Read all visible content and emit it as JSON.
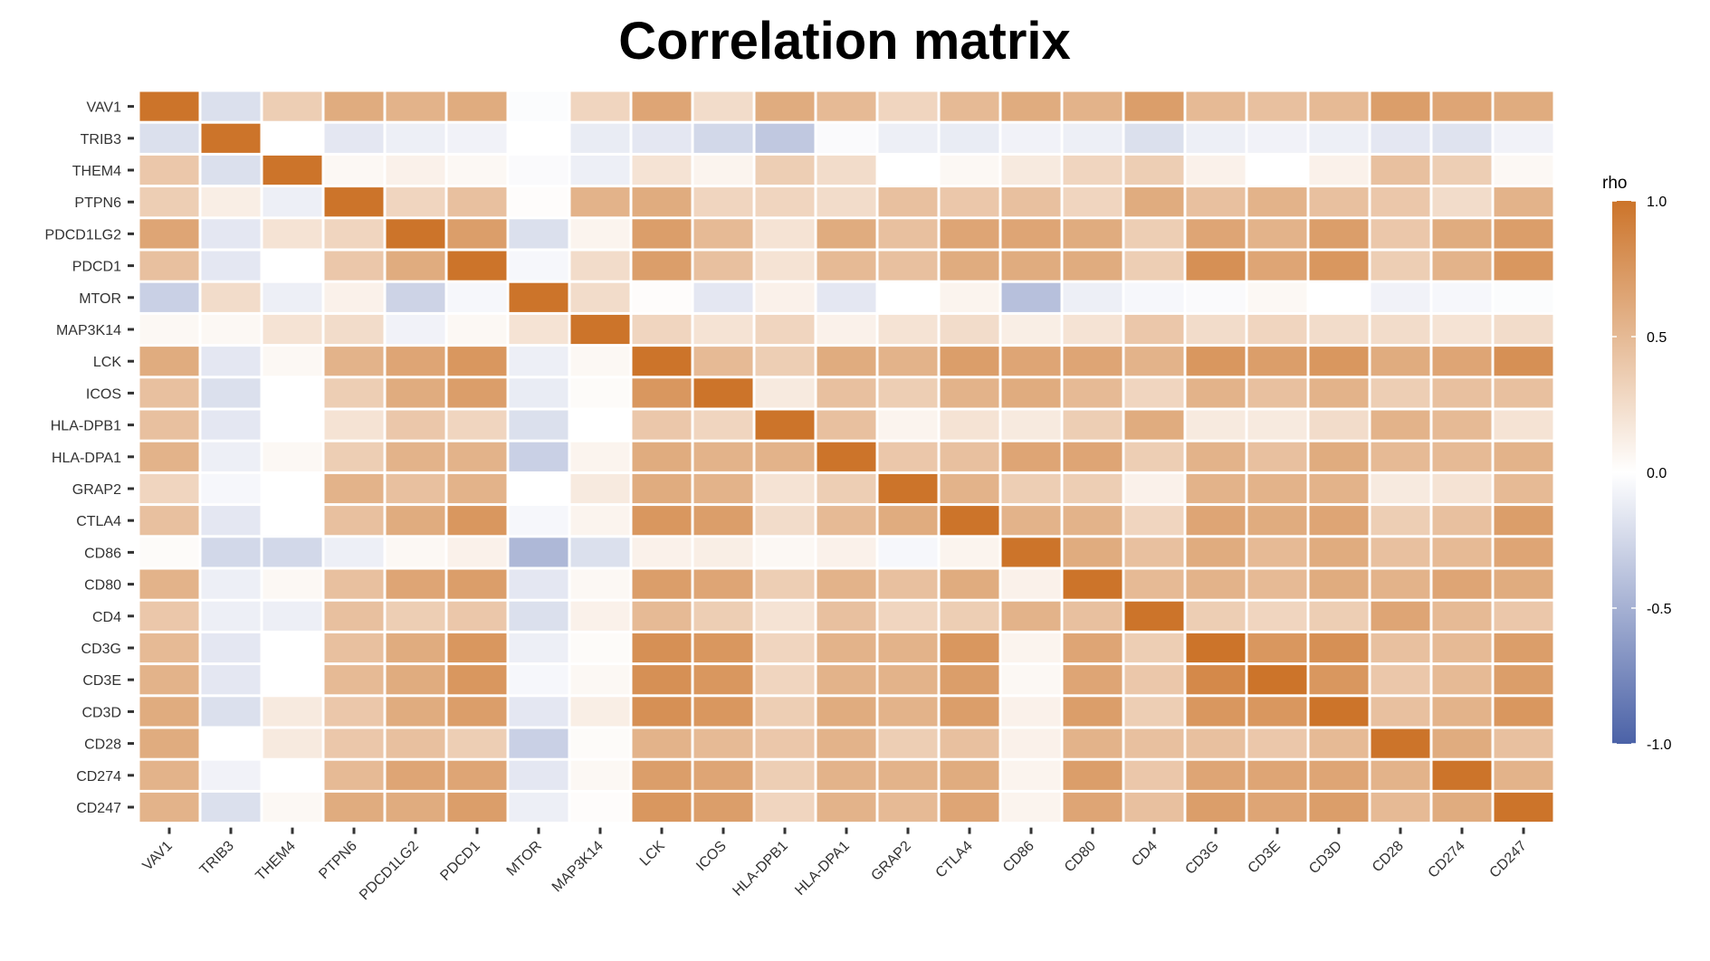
{
  "chart_data": {
    "type": "heatmap",
    "title": "Correlation matrix",
    "genes": [
      "VAV1",
      "TRIB3",
      "THEM4",
      "PTPN6",
      "PDCD1LG2",
      "PDCD1",
      "MTOR",
      "MAP3K14",
      "LCK",
      "ICOS",
      "HLA-DPB1",
      "HLA-DPA1",
      "GRAP2",
      "CTLA4",
      "CD86",
      "CD80",
      "CD4",
      "CD3G",
      "CD3E",
      "CD3D",
      "CD28",
      "CD274",
      "CD247"
    ],
    "matrix": [
      [
        1.0,
        -0.2,
        0.35,
        0.6,
        0.55,
        0.6,
        -0.02,
        0.3,
        0.65,
        0.25,
        0.6,
        0.5,
        0.3,
        0.5,
        0.6,
        0.55,
        0.7,
        0.5,
        0.45,
        0.5,
        0.7,
        0.65,
        0.6
      ],
      [
        -0.2,
        1.0,
        0.0,
        -0.15,
        -0.1,
        -0.08,
        0.0,
        -0.12,
        -0.15,
        -0.25,
        -0.35,
        -0.03,
        -0.1,
        -0.12,
        -0.08,
        -0.1,
        -0.2,
        -0.1,
        -0.08,
        -0.1,
        -0.15,
        -0.18,
        -0.08
      ],
      [
        0.4,
        -0.2,
        1.0,
        0.05,
        0.1,
        0.05,
        -0.03,
        -0.1,
        0.2,
        0.08,
        0.35,
        0.25,
        0.0,
        0.05,
        0.15,
        0.3,
        0.35,
        0.1,
        0.0,
        0.1,
        0.45,
        0.35,
        0.05
      ],
      [
        0.35,
        0.12,
        -0.1,
        1.0,
        0.3,
        0.45,
        0.02,
        0.55,
        0.6,
        0.3,
        0.3,
        0.25,
        0.45,
        0.4,
        0.45,
        0.3,
        0.6,
        0.45,
        0.55,
        0.45,
        0.4,
        0.25,
        0.55
      ],
      [
        0.65,
        -0.15,
        0.2,
        0.3,
        1.0,
        0.7,
        -0.2,
        0.08,
        0.7,
        0.5,
        0.2,
        0.6,
        0.45,
        0.65,
        0.65,
        0.6,
        0.35,
        0.65,
        0.55,
        0.7,
        0.4,
        0.6,
        0.7
      ],
      [
        0.45,
        -0.15,
        0.0,
        0.4,
        0.6,
        1.0,
        -0.05,
        0.25,
        0.7,
        0.45,
        0.2,
        0.5,
        0.45,
        0.6,
        0.6,
        0.6,
        0.35,
        0.8,
        0.65,
        0.75,
        0.35,
        0.55,
        0.75
      ],
      [
        -0.3,
        0.25,
        -0.1,
        0.1,
        -0.28,
        -0.05,
        1.0,
        0.25,
        0.02,
        -0.15,
        0.1,
        -0.15,
        0.0,
        0.08,
        -0.4,
        -0.1,
        -0.05,
        -0.03,
        0.05,
        0.0,
        -0.08,
        -0.05,
        -0.02
      ],
      [
        0.05,
        0.05,
        0.2,
        0.25,
        -0.08,
        0.05,
        0.2,
        1.0,
        0.3,
        0.2,
        0.3,
        0.1,
        0.2,
        0.25,
        0.12,
        0.2,
        0.4,
        0.25,
        0.3,
        0.25,
        0.25,
        0.2,
        0.25
      ],
      [
        0.6,
        -0.15,
        0.05,
        0.55,
        0.65,
        0.75,
        -0.1,
        0.05,
        1.0,
        0.5,
        0.35,
        0.6,
        0.55,
        0.7,
        0.65,
        0.65,
        0.55,
        0.75,
        0.7,
        0.75,
        0.6,
        0.65,
        0.8
      ],
      [
        0.45,
        -0.2,
        0.0,
        0.35,
        0.6,
        0.7,
        -0.12,
        0.03,
        0.75,
        1.0,
        0.15,
        0.45,
        0.35,
        0.55,
        0.6,
        0.5,
        0.3,
        0.55,
        0.45,
        0.55,
        0.35,
        0.45,
        0.45
      ],
      [
        0.45,
        -0.15,
        0.0,
        0.2,
        0.4,
        0.3,
        -0.2,
        0.0,
        0.4,
        0.3,
        1.0,
        0.45,
        0.08,
        0.2,
        0.15,
        0.35,
        0.6,
        0.15,
        0.15,
        0.25,
        0.55,
        0.5,
        0.2
      ],
      [
        0.55,
        -0.1,
        0.05,
        0.35,
        0.55,
        0.55,
        -0.3,
        0.08,
        0.6,
        0.55,
        0.55,
        1.0,
        0.4,
        0.45,
        0.65,
        0.65,
        0.35,
        0.55,
        0.45,
        0.6,
        0.5,
        0.5,
        0.55
      ],
      [
        0.3,
        -0.05,
        0.0,
        0.55,
        0.45,
        0.55,
        0.0,
        0.15,
        0.6,
        0.55,
        0.2,
        0.35,
        1.0,
        0.55,
        0.35,
        0.35,
        0.1,
        0.55,
        0.55,
        0.55,
        0.15,
        0.2,
        0.5
      ],
      [
        0.45,
        -0.15,
        0.0,
        0.45,
        0.6,
        0.75,
        -0.05,
        0.08,
        0.75,
        0.7,
        0.25,
        0.5,
        0.6,
        1.0,
        0.55,
        0.55,
        0.3,
        0.65,
        0.6,
        0.65,
        0.35,
        0.45,
        0.7
      ],
      [
        0.03,
        -0.25,
        -0.25,
        -0.1,
        0.05,
        0.1,
        -0.45,
        -0.2,
        0.1,
        0.12,
        0.05,
        0.1,
        -0.05,
        0.08,
        1.0,
        0.6,
        0.45,
        0.6,
        0.5,
        0.6,
        0.45,
        0.5,
        0.65
      ],
      [
        0.55,
        -0.1,
        0.05,
        0.45,
        0.65,
        0.7,
        -0.15,
        0.05,
        0.7,
        0.65,
        0.35,
        0.55,
        0.45,
        0.6,
        0.1,
        1.0,
        0.5,
        0.55,
        0.5,
        0.6,
        0.55,
        0.65,
        0.6
      ],
      [
        0.4,
        -0.1,
        -0.1,
        0.45,
        0.35,
        0.4,
        -0.2,
        0.1,
        0.5,
        0.35,
        0.2,
        0.45,
        0.3,
        0.35,
        0.55,
        0.45,
        1.0,
        0.35,
        0.3,
        0.35,
        0.65,
        0.5,
        0.4
      ],
      [
        0.5,
        -0.15,
        0.0,
        0.45,
        0.6,
        0.75,
        -0.1,
        0.03,
        0.8,
        0.75,
        0.3,
        0.55,
        0.55,
        0.75,
        0.08,
        0.65,
        0.35,
        1.0,
        0.75,
        0.8,
        0.45,
        0.5,
        0.7
      ],
      [
        0.55,
        -0.15,
        0.0,
        0.5,
        0.6,
        0.75,
        -0.05,
        0.05,
        0.8,
        0.75,
        0.3,
        0.55,
        0.55,
        0.7,
        0.05,
        0.65,
        0.4,
        0.85,
        1.0,
        0.75,
        0.4,
        0.5,
        0.7
      ],
      [
        0.6,
        -0.2,
        0.15,
        0.4,
        0.6,
        0.7,
        -0.15,
        0.12,
        0.8,
        0.75,
        0.35,
        0.6,
        0.55,
        0.7,
        0.1,
        0.7,
        0.35,
        0.75,
        0.75,
        1.0,
        0.45,
        0.55,
        0.75
      ],
      [
        0.6,
        0.0,
        0.15,
        0.4,
        0.45,
        0.35,
        -0.3,
        0.03,
        0.55,
        0.5,
        0.4,
        0.55,
        0.35,
        0.45,
        0.1,
        0.55,
        0.45,
        0.45,
        0.4,
        0.5,
        1.0,
        0.6,
        0.45
      ],
      [
        0.55,
        -0.08,
        0.0,
        0.5,
        0.65,
        0.65,
        -0.15,
        0.05,
        0.7,
        0.65,
        0.35,
        0.55,
        0.55,
        0.6,
        0.08,
        0.7,
        0.4,
        0.65,
        0.65,
        0.65,
        0.55,
        1.0,
        0.55
      ],
      [
        0.55,
        -0.2,
        0.05,
        0.6,
        0.6,
        0.7,
        -0.1,
        0.02,
        0.75,
        0.7,
        0.3,
        0.55,
        0.5,
        0.65,
        0.08,
        0.65,
        0.45,
        0.7,
        0.65,
        0.7,
        0.5,
        0.6,
        1.0
      ]
    ],
    "color_scale": {
      "min": -1.0,
      "mid": 0.0,
      "max": 1.0,
      "low_color": "#4b62a7",
      "mid_color": "#ffffff",
      "high_color": "#cc742a"
    },
    "legend": {
      "title": "rho",
      "ticks": [
        1.0,
        0.5,
        0.0,
        -0.5,
        -1.0
      ],
      "tick_labels": [
        "1.0",
        "0.5",
        "0.0",
        "-0.5",
        "-1.0"
      ],
      "placement": "right"
    }
  }
}
